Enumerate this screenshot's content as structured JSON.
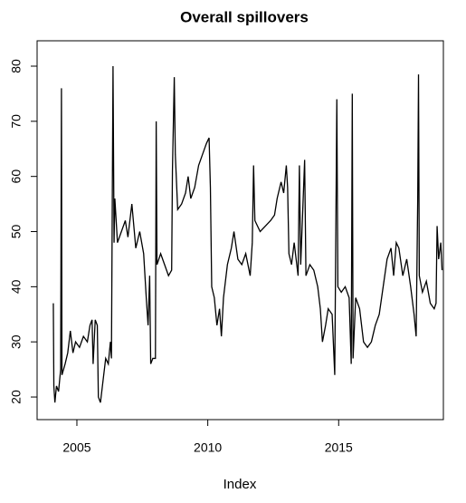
{
  "chart_data": {
    "type": "line",
    "title": "Overall spillovers",
    "xlabel": "Index",
    "x": [
      2004.1,
      2004.12,
      2004.16,
      2004.22,
      2004.3,
      2004.38,
      2004.41,
      2004.43,
      2004.55,
      2004.65,
      2004.75,
      2004.85,
      2004.95,
      2005.1,
      2005.25,
      2005.4,
      2005.5,
      2005.58,
      2005.62,
      2005.7,
      2005.78,
      2005.82,
      2005.9,
      2006.0,
      2006.1,
      2006.2,
      2006.28,
      2006.32,
      2006.38,
      2006.42,
      2006.45,
      2006.55,
      2006.7,
      2006.85,
      2006.95,
      2007.1,
      2007.25,
      2007.4,
      2007.55,
      2007.65,
      2007.72,
      2007.78,
      2007.82,
      2007.9,
      2008.0,
      2008.03,
      2008.06,
      2008.2,
      2008.35,
      2008.5,
      2008.62,
      2008.65,
      2008.72,
      2008.76,
      2008.85,
      2009.0,
      2009.15,
      2009.25,
      2009.35,
      2009.5,
      2009.65,
      2009.8,
      2009.95,
      2010.05,
      2010.1,
      2010.15,
      2010.25,
      2010.35,
      2010.45,
      2010.52,
      2010.6,
      2010.75,
      2010.9,
      2011.0,
      2011.15,
      2011.3,
      2011.45,
      2011.62,
      2011.7,
      2011.75,
      2011.8,
      2012.0,
      2012.2,
      2012.4,
      2012.55,
      2012.65,
      2012.8,
      2012.9,
      2013.0,
      2013.05,
      2013.1,
      2013.2,
      2013.3,
      2013.45,
      2013.5,
      2013.55,
      2013.7,
      2013.75,
      2013.9,
      2014.05,
      2014.2,
      2014.3,
      2014.38,
      2014.5,
      2014.6,
      2014.75,
      2014.85,
      2014.93,
      2014.97,
      2015.1,
      2015.25,
      2015.4,
      2015.48,
      2015.52,
      2015.55,
      2015.65,
      2015.8,
      2015.95,
      2016.1,
      2016.25,
      2016.4,
      2016.55,
      2016.7,
      2016.85,
      2017.0,
      2017.1,
      2017.2,
      2017.3,
      2017.45,
      2017.6,
      2017.75,
      2017.88,
      2017.96,
      2018.02,
      2018.05,
      2018.08,
      2018.2,
      2018.35,
      2018.5,
      2018.65,
      2018.72,
      2018.76,
      2018.82,
      2018.9,
      2018.95
    ],
    "series": [
      {
        "color": "#000000",
        "values": [
          37,
          22,
          19,
          22,
          21,
          25,
          76,
          24,
          26,
          28,
          32,
          28,
          30,
          29,
          31,
          30,
          33,
          34,
          26,
          34,
          33,
          20,
          19,
          23,
          27,
          26,
          30,
          27,
          80,
          48,
          56,
          48,
          50,
          52,
          49,
          55,
          47,
          50,
          46,
          38,
          33,
          42,
          26,
          27,
          27,
          70,
          44,
          46,
          44,
          42,
          43,
          61,
          78,
          64,
          54,
          55,
          57,
          60,
          56,
          58,
          62,
          64,
          66,
          67,
          58,
          40,
          38,
          33,
          36,
          31,
          38,
          44,
          47,
          50,
          45,
          44,
          46,
          42,
          48,
          62,
          52,
          50,
          51,
          52,
          53,
          56,
          59,
          57,
          62,
          58,
          46,
          44,
          48,
          42,
          62,
          44,
          63,
          42,
          44,
          43,
          40,
          36,
          30,
          33,
          36,
          35,
          24,
          74,
          40,
          39,
          40,
          38,
          26,
          75,
          27,
          38,
          36,
          30,
          29,
          30,
          33,
          35,
          40,
          45,
          47,
          42,
          48,
          47,
          42,
          45,
          40,
          35,
          31,
          56,
          78.5,
          42,
          39,
          41,
          37,
          36,
          37,
          51,
          45,
          48,
          43
        ]
      }
    ],
    "xlim": [
      2003.48,
      2019.0
    ],
    "ylim": [
      15.9,
      84.6
    ],
    "xticks": [
      2005,
      2010,
      2015
    ],
    "yticks": [
      20,
      30,
      40,
      50,
      60,
      70,
      80
    ]
  }
}
